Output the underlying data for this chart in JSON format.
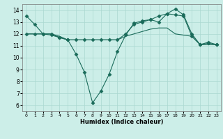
{
  "xlabel": "Humidex (Indice chaleur)",
  "bg_color": "#cceee8",
  "grid_color": "#aad8d0",
  "line_color": "#1a6b5a",
  "x": [
    0,
    1,
    2,
    3,
    4,
    5,
    6,
    7,
    8,
    9,
    10,
    11,
    12,
    13,
    14,
    15,
    16,
    17,
    18,
    19,
    20,
    21,
    22,
    23
  ],
  "series1": [
    13.5,
    12.8,
    12.0,
    12.0,
    11.7,
    11.5,
    10.3,
    8.8,
    6.2,
    7.2,
    8.6,
    10.5,
    11.9,
    12.9,
    13.1,
    13.2,
    13.0,
    13.7,
    14.1,
    13.6,
    12.0,
    11.1,
    11.3,
    11.1
  ],
  "series2": [
    12.0,
    12.0,
    12.0,
    12.0,
    11.8,
    11.5,
    11.5,
    11.5,
    11.5,
    11.5,
    11.5,
    11.5,
    11.8,
    12.0,
    12.2,
    12.4,
    12.5,
    12.5,
    12.0,
    11.9,
    11.8,
    11.1,
    11.1,
    11.1
  ],
  "series3": [
    12.0,
    12.0,
    12.0,
    11.9,
    11.7,
    11.5,
    11.5,
    11.5,
    11.5,
    11.5,
    11.5,
    11.5,
    12.0,
    12.8,
    13.0,
    13.2,
    13.5,
    13.7,
    13.6,
    13.5,
    11.8,
    11.1,
    11.2,
    11.1
  ],
  "ylim": [
    5.5,
    14.5
  ],
  "yticks": [
    6,
    7,
    8,
    9,
    10,
    11,
    12,
    13,
    14
  ],
  "xticks": [
    0,
    1,
    2,
    3,
    4,
    5,
    6,
    7,
    8,
    9,
    10,
    11,
    12,
    13,
    14,
    15,
    16,
    17,
    18,
    19,
    20,
    21,
    22,
    23
  ],
  "markersize": 2.5,
  "linewidth": 0.8
}
